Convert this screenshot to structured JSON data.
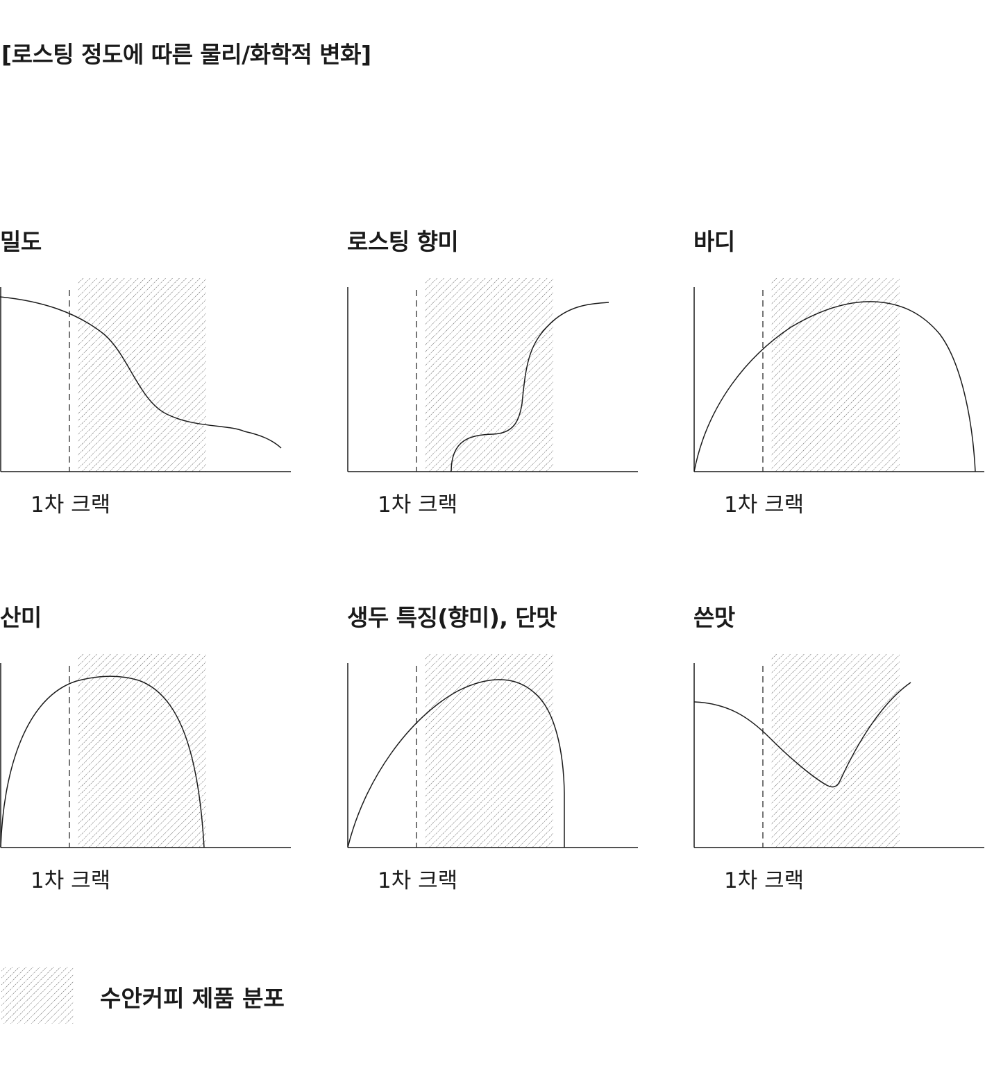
{
  "page": {
    "title": "[로스팅 정도에 따른 물리/화학적 변화]"
  },
  "charts": [
    {
      "title": "밀도",
      "marker_label": "1차 크랙"
    },
    {
      "title": "로스팅 향미",
      "marker_label": "1차 크랙"
    },
    {
      "title": "바디",
      "marker_label": "1차 크랙"
    },
    {
      "title": "산미",
      "marker_label": "1차 크랙"
    },
    {
      "title": "생두 특징(향미), 단맛",
      "marker_label": "1차 크랙"
    },
    {
      "title": "쓴맛",
      "marker_label": "1차 크랙"
    }
  ],
  "legend": {
    "label": "수안커피 제품 분포",
    "pattern": "diagonal-hatch"
  },
  "colors": {
    "line": "#1a1a1a",
    "hatch": "#555555",
    "background": "#ffffff"
  }
}
